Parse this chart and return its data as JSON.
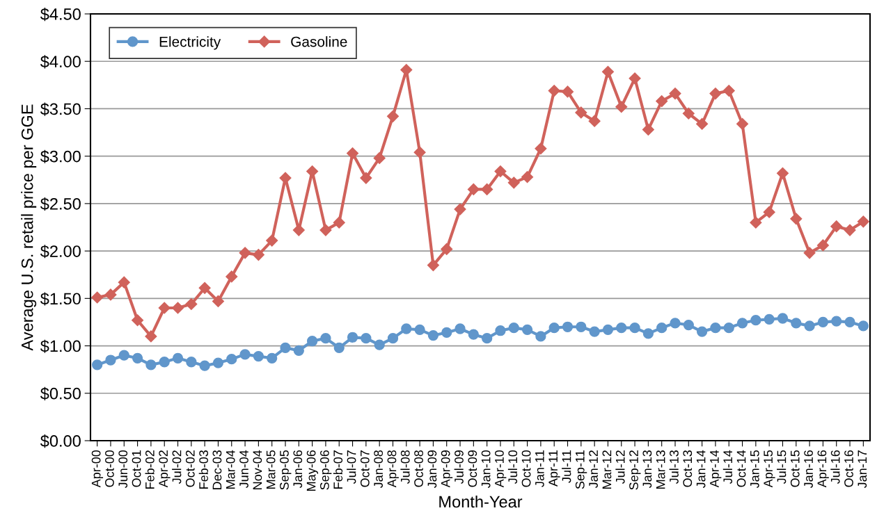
{
  "chart_data": {
    "type": "line",
    "xlabel": "Month-Year",
    "ylabel": "Average U.S. retail price per GGE",
    "categories": [
      "Apr-00",
      "Oct-00",
      "Jun-00",
      "Oct-01",
      "Feb-02",
      "Apr-02",
      "Jul-02",
      "Oct-02",
      "Feb-03",
      "Dec-03",
      "Mar-04",
      "Jun-04",
      "Nov-04",
      "Mar-05",
      "Sep-05",
      "Jan-06",
      "May-06",
      "Sep-06",
      "Feb-07",
      "Jul-07",
      "Oct-07",
      "Jan-08",
      "Apr-08",
      "Jul-08",
      "Oct-08",
      "Jan-09",
      "Apr-09",
      "Jul-09",
      "Oct-09",
      "Jan-10",
      "Apr-10",
      "Jul-10",
      "Oct-10",
      "Jan-11",
      "Apr-11",
      "Jul-11",
      "Sep-11",
      "Jan-12",
      "Mar-12",
      "Jul-12",
      "Sep-12",
      "Jan-13",
      "Mar-13",
      "Jul-13",
      "Oct-13",
      "Jan-14",
      "Apr-14",
      "Jul-14",
      "Oct-14",
      "Jan-15",
      "Apr-15",
      "Jul-15",
      "Oct-15",
      "Jan-16",
      "Apr-16",
      "Jul-16",
      "Oct-16",
      "Jan-17"
    ],
    "series": [
      {
        "name": "Electricity",
        "color": "#6096cb",
        "marker": "circle",
        "values": [
          0.8,
          0.85,
          0.9,
          0.87,
          0.8,
          0.83,
          0.87,
          0.83,
          0.79,
          0.82,
          0.86,
          0.91,
          0.89,
          0.87,
          0.98,
          0.95,
          1.05,
          1.08,
          0.98,
          1.09,
          1.08,
          1.01,
          1.08,
          1.18,
          1.17,
          1.11,
          1.14,
          1.18,
          1.12,
          1.08,
          1.16,
          1.19,
          1.17,
          1.1,
          1.19,
          1.2,
          1.2,
          1.15,
          1.17,
          1.19,
          1.19,
          1.13,
          1.19,
          1.24,
          1.22,
          1.15,
          1.19,
          1.19,
          1.24,
          1.27,
          1.28,
          1.29,
          1.24,
          1.21,
          1.25,
          1.26,
          1.25,
          1.21
        ]
      },
      {
        "name": "Gasoline",
        "color": "#d0625b",
        "marker": "diamond",
        "values": [
          1.51,
          1.54,
          1.67,
          1.27,
          1.1,
          1.4,
          1.4,
          1.44,
          1.61,
          1.47,
          1.73,
          1.98,
          1.96,
          2.11,
          2.77,
          2.22,
          2.84,
          2.22,
          2.3,
          3.03,
          2.77,
          2.98,
          3.42,
          3.91,
          3.04,
          1.85,
          2.02,
          2.44,
          2.65,
          2.65,
          2.84,
          2.72,
          2.78,
          3.08,
          3.69,
          3.68,
          3.46,
          3.37,
          3.89,
          3.52,
          3.82,
          3.28,
          3.58,
          3.66,
          3.45,
          3.34,
          3.66,
          3.69,
          3.34,
          2.3,
          2.41,
          2.82,
          2.34,
          1.98,
          2.06,
          2.26,
          2.22,
          2.31
        ]
      }
    ],
    "ylim": [
      0,
      4.5
    ],
    "yticks": [
      {
        "value": 0,
        "label": "$0.00"
      },
      {
        "value": 0.5,
        "label": "$0.50"
      },
      {
        "value": 1,
        "label": "$1.00"
      },
      {
        "value": 1.5,
        "label": "$1.50"
      },
      {
        "value": 2,
        "label": "$2.00"
      },
      {
        "value": 2.5,
        "label": "$2.50"
      },
      {
        "value": 3,
        "label": "$3.00"
      },
      {
        "value": 3.5,
        "label": "$3.50"
      },
      {
        "value": 4,
        "label": "$4.00"
      },
      {
        "value": 4.5,
        "label": "$4.50"
      }
    ],
    "grid": "y",
    "legend": "top left",
    "line_style": "solid"
  }
}
